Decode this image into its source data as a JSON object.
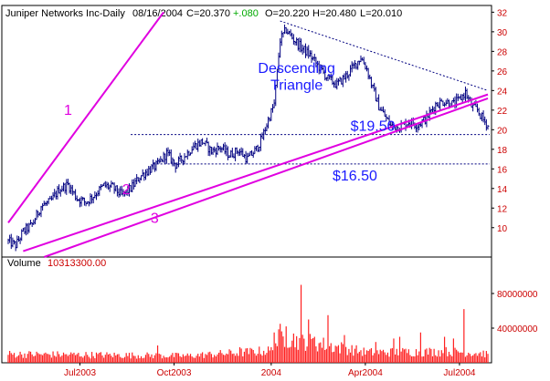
{
  "header": {
    "symbol": "Juniper Networks Inc-Daily",
    "date": "08/16/2004",
    "close": "C=20.370",
    "change": "+.080",
    "open": "O=20.220",
    "high": "H=20.480",
    "low": "L=20.010"
  },
  "volume_label": "Volume",
  "volume_value": "10313300.00",
  "colors": {
    "price_bars": "#000080",
    "volume_bars": "#ff2020",
    "trendlines": "#e000e0",
    "annotations": "#1a1aff",
    "axis_text": "#cc0000",
    "change_text": "#00aa00"
  },
  "chart_data": {
    "type": "bar",
    "title": "",
    "x_tick_labels": [
      "Jul2003",
      "Oct2003",
      "2004",
      "Apr2004",
      "Jul2004"
    ],
    "x_tick_index": [
      48,
      111,
      176,
      239,
      302
    ],
    "n_bars": 322,
    "price_axis": {
      "min": 7,
      "max": 32.5,
      "ticks": [
        10,
        12,
        14,
        16,
        18,
        20,
        22,
        24,
        26,
        28,
        30,
        32
      ]
    },
    "volume_axis": {
      "max": 120000000,
      "ticks": [
        40000000,
        80000000
      ],
      "tick_labels": [
        "40000000",
        "80000000"
      ]
    },
    "price_keypoints": [
      [
        0,
        8.6
      ],
      [
        5,
        8.2
      ],
      [
        10,
        9.6
      ],
      [
        16,
        10.3
      ],
      [
        22,
        12.2
      ],
      [
        28,
        12.6
      ],
      [
        34,
        13.9
      ],
      [
        40,
        14.4
      ],
      [
        46,
        13.0
      ],
      [
        52,
        12.6
      ],
      [
        58,
        13.4
      ],
      [
        64,
        14.3
      ],
      [
        70,
        14.1
      ],
      [
        76,
        13.3
      ],
      [
        82,
        14.0
      ],
      [
        88,
        15.2
      ],
      [
        94,
        15.9
      ],
      [
        100,
        16.4
      ],
      [
        106,
        17.6
      ],
      [
        112,
        16.4
      ],
      [
        118,
        17.3
      ],
      [
        124,
        18.3
      ],
      [
        130,
        18.8
      ],
      [
        136,
        17.8
      ],
      [
        142,
        18.2
      ],
      [
        148,
        17.4
      ],
      [
        154,
        17.9
      ],
      [
        160,
        17.0
      ],
      [
        166,
        18.0
      ],
      [
        170,
        19.2
      ],
      [
        174,
        21.0
      ],
      [
        178,
        22.6
      ],
      [
        182,
        29.2
      ],
      [
        186,
        30.2
      ],
      [
        190,
        29.4
      ],
      [
        196,
        28.4
      ],
      [
        202,
        27.6
      ],
      [
        208,
        26.4
      ],
      [
        214,
        25.2
      ],
      [
        220,
        24.6
      ],
      [
        226,
        25.5
      ],
      [
        232,
        26.6
      ],
      [
        236,
        27.4
      ],
      [
        240,
        26.2
      ],
      [
        244,
        24.2
      ],
      [
        248,
        22.4
      ],
      [
        252,
        21.4
      ],
      [
        256,
        20.4
      ],
      [
        262,
        20.3
      ],
      [
        268,
        20.8
      ],
      [
        274,
        20.5
      ],
      [
        280,
        21.2
      ],
      [
        286,
        22.6
      ],
      [
        292,
        22.9
      ],
      [
        298,
        22.6
      ],
      [
        302,
        23.1
      ],
      [
        306,
        23.8
      ],
      [
        310,
        22.4
      ],
      [
        314,
        22.0
      ],
      [
        318,
        21.0
      ],
      [
        321,
        20.4
      ]
    ],
    "volume_keypoints": [
      [
        0,
        10000000
      ],
      [
        60,
        9000000
      ],
      [
        120,
        8000000
      ],
      [
        176,
        14000000
      ],
      [
        182,
        30000000
      ],
      [
        240,
        12000000
      ],
      [
        300,
        13000000
      ],
      [
        321,
        10313300
      ]
    ],
    "volume_spikes": [
      [
        100,
        20000000
      ],
      [
        155,
        18000000
      ],
      [
        178,
        35000000
      ],
      [
        182,
        45000000
      ],
      [
        186,
        42000000
      ],
      [
        196,
        90000000
      ],
      [
        201,
        50000000
      ],
      [
        205,
        30000000
      ],
      [
        214,
        55000000
      ],
      [
        225,
        32000000
      ],
      [
        246,
        24000000
      ],
      [
        258,
        28000000
      ],
      [
        262,
        30000000
      ],
      [
        276,
        35000000
      ],
      [
        292,
        30000000
      ],
      [
        298,
        28000000
      ],
      [
        305,
        62000000
      ]
    ],
    "trendlines": [
      {
        "label": "1",
        "from": [
          0,
          10.5
        ],
        "to": [
          104,
          32.0
        ]
      },
      {
        "label": "2",
        "from": [
          10,
          7.6
        ],
        "to": [
          321,
          23.6
        ]
      },
      {
        "label": "3",
        "from": [
          24,
          7.0
        ],
        "to": [
          321,
          23.2
        ]
      }
    ],
    "resistance_line": {
      "from": [
        182,
        31.1
      ],
      "to": [
        321,
        24.0
      ]
    },
    "support_levels": [
      {
        "label": "$19.50",
        "value": 19.5,
        "from": 82
      },
      {
        "label": "$16.50",
        "value": 16.5,
        "from": 97
      }
    ],
    "annotations": [
      {
        "text": "Descending",
        "index": 193,
        "price": 25.8
      },
      {
        "text": "Triangle",
        "index": 193,
        "price": 24.1
      }
    ],
    "trendline_labels": [
      {
        "text": "1",
        "index": 40,
        "price": 21.5
      },
      {
        "text": "2",
        "index": 79,
        "price": 13.4
      },
      {
        "text": "3",
        "index": 98,
        "price": 10.5
      }
    ]
  }
}
